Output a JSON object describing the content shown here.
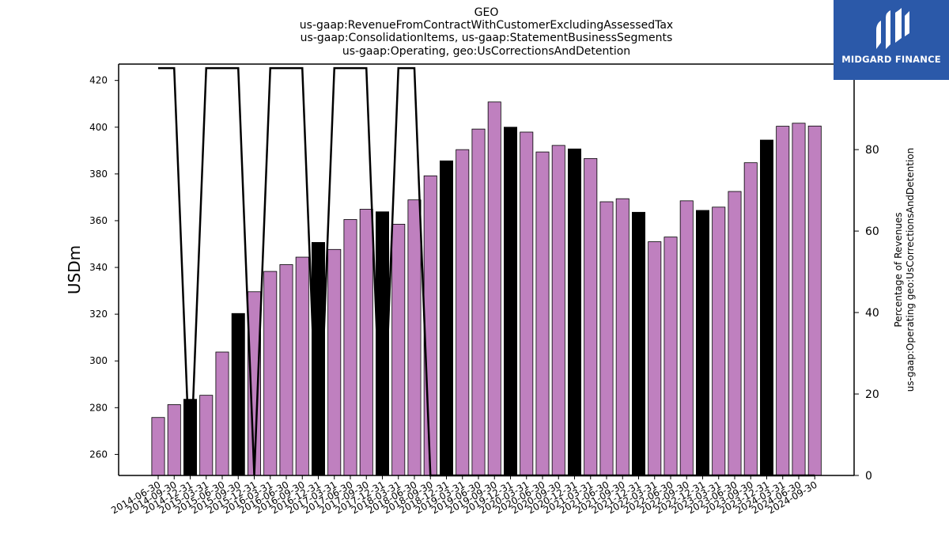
{
  "chart_data": {
    "type": "bar",
    "title_lines": [
      "GEO",
      "us-gaap:RevenueFromContractWithCustomerExcludingAssessedTax",
      "us-gaap:ConsolidationItems, us-gaap:StatementBusinessSegments",
      "us-gaap:Operating, geo:UsCorrectionsAndDetention"
    ],
    "ylabel": "USDm",
    "y2label_lines": [
      "Percentage of Revenues",
      "us-gaap:Operating geo:UsCorrectionsAndDetention"
    ],
    "ylim": [
      251,
      427
    ],
    "y_ticks": [
      260,
      280,
      300,
      320,
      340,
      360,
      380,
      400,
      420
    ],
    "y2lim": [
      0,
      101
    ],
    "y2_ticks": [
      0,
      20,
      40,
      60,
      80,
      100
    ],
    "categories": [
      "2014-06-30",
      "2014-09-30",
      "2014-12-31",
      "2015-03-31",
      "2015-06-30",
      "2015-09-30",
      "2015-12-31",
      "2016-03-31",
      "2016-06-30",
      "2016-09-30",
      "2016-12-31",
      "2017-03-31",
      "2017-06-30",
      "2017-09-30",
      "2017-12-31",
      "2018-03-31",
      "2018-06-30",
      "2018-09-30",
      "2018-12-31",
      "2019-03-31",
      "2019-06-30",
      "2019-09-30",
      "2019-12-31",
      "2020-03-31",
      "2020-06-30",
      "2020-09-30",
      "2020-12-31",
      "2021-03-31",
      "2021-06-30",
      "2021-09-30",
      "2021-12-31",
      "2022-03-31",
      "2022-06-30",
      "2022-09-30",
      "2022-12-31",
      "2023-03-31",
      "2023-06-30",
      "2023-09-30",
      "2023-12-31",
      "2024-03-31",
      "2024-06-30",
      "2024-09-30"
    ],
    "values": [
      275.8,
      281.3,
      283.6,
      285.3,
      303.8,
      320.3,
      329.6,
      338.3,
      341.2,
      344.4,
      350.7,
      347.7,
      360.5,
      364.9,
      363.8,
      358.5,
      368.9,
      379.2,
      385.6,
      390.4,
      399.2,
      410.8,
      400.0,
      397.9,
      389.4,
      392.2,
      390.7,
      386.6,
      368.1,
      369.4,
      363.6,
      351.0,
      353.0,
      368.5,
      364.4,
      365.8,
      372.5,
      384.8,
      394.5,
      400.4,
      401.7,
      400.5
    ],
    "highlighted_categories": [
      "2014-12-31",
      "2015-09-30",
      "2016-12-31",
      "2017-12-31",
      "2018-12-31",
      "2019-12-31",
      "2020-12-31",
      "2021-12-31",
      "2022-12-31",
      "2023-12-31"
    ],
    "percentage_line": [
      100,
      100,
      0,
      100,
      100,
      100,
      0,
      100,
      100,
      100,
      0,
      100,
      100,
      100,
      0,
      100,
      100,
      0,
      0,
      0,
      0,
      0,
      0,
      0,
      0,
      0,
      0,
      0,
      0,
      0,
      0,
      0,
      0,
      0,
      0,
      0,
      0,
      0,
      0,
      0,
      0,
      0
    ],
    "colors": {
      "bar": "#bf80bf",
      "highlight_bar": "#000000",
      "line": "#000000"
    }
  },
  "logo": {
    "text": "MIDGARD FINANCE",
    "background": "#2b59a9"
  }
}
